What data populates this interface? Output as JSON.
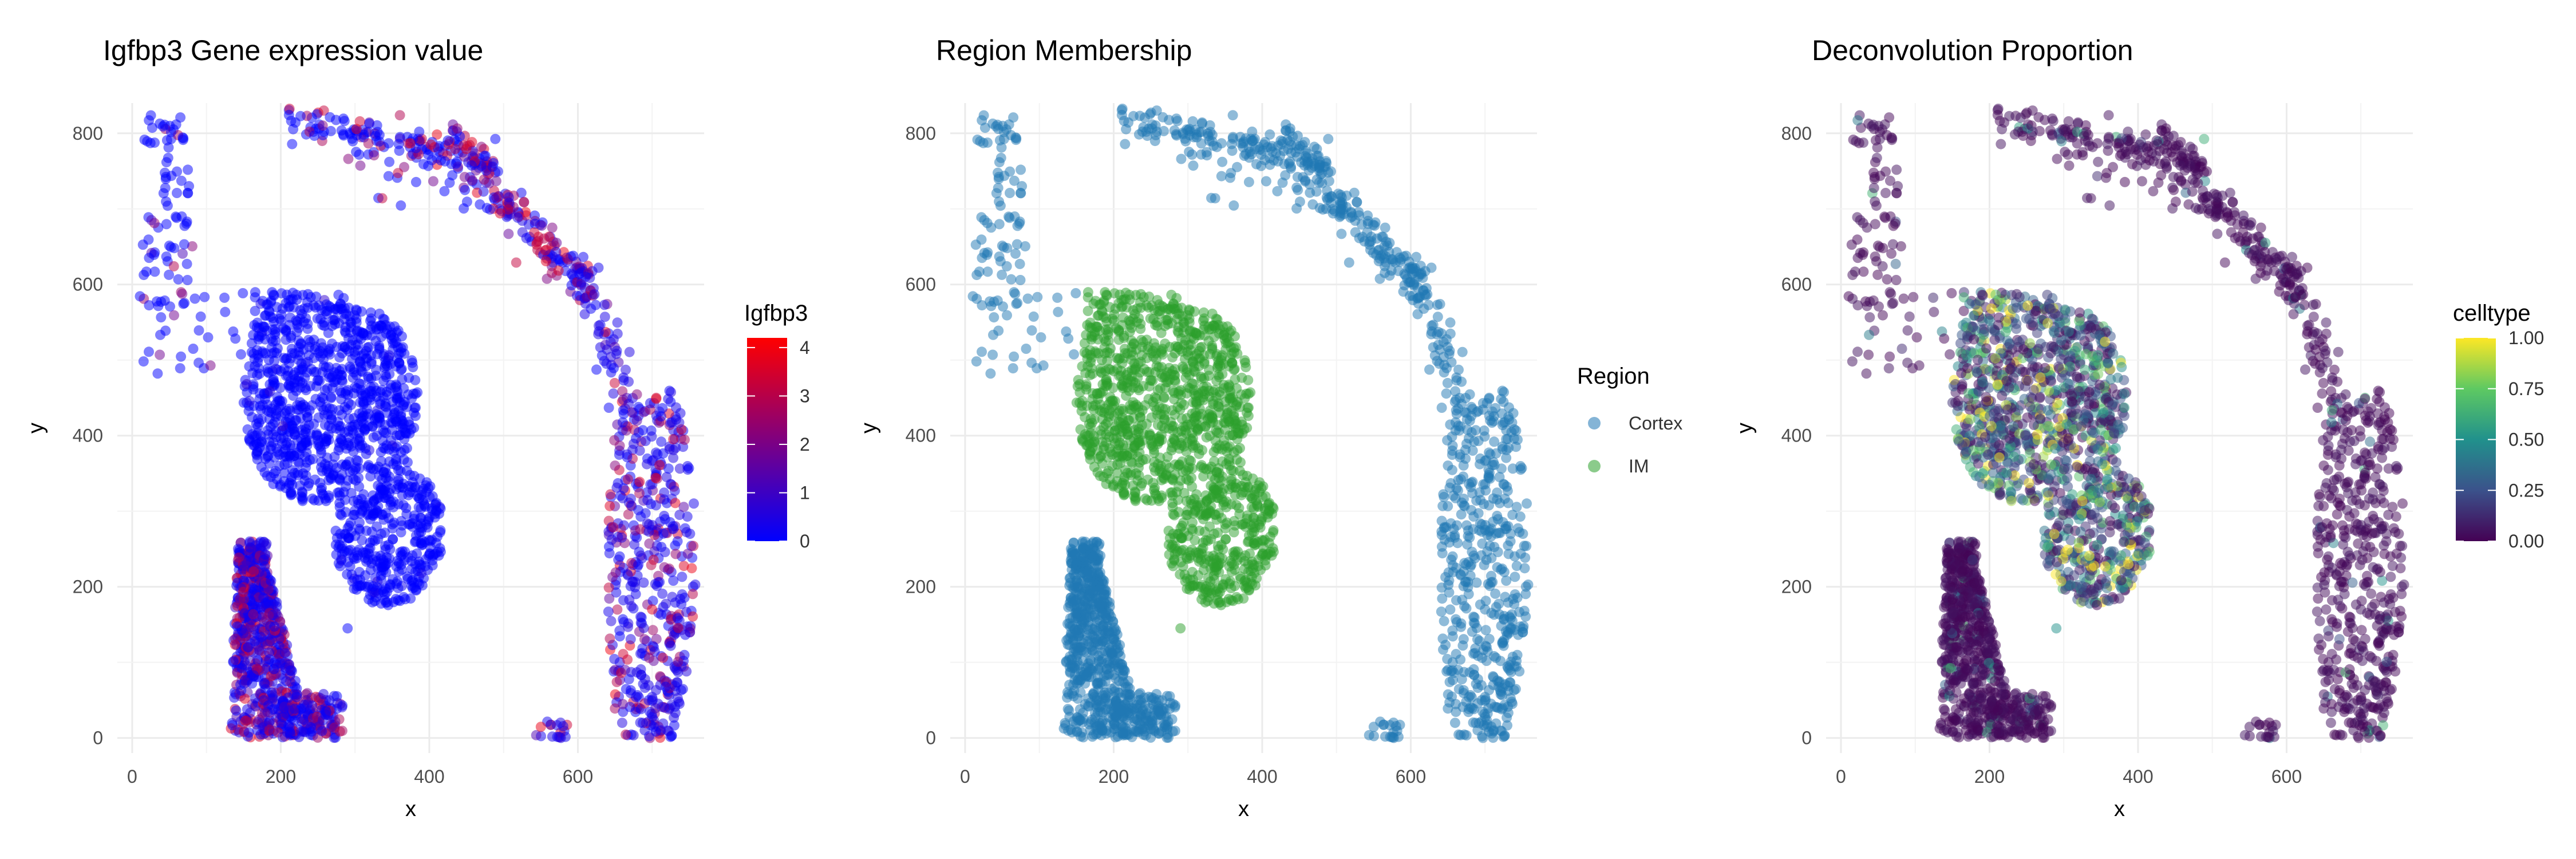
{
  "chart_data": [
    {
      "type": "scatter",
      "title": "Igfbp3 Gene expression value",
      "xlabel": "x",
      "ylabel": "y",
      "xlim": [
        -20,
        770
      ],
      "ylim": [
        -20,
        840
      ],
      "x_ticks": [
        "0",
        "200",
        "400",
        "600"
      ],
      "y_ticks": [
        "0",
        "200",
        "400",
        "600",
        "800"
      ],
      "grid": true,
      "legend": {
        "kind": "colorbar",
        "title": "Igfbp3",
        "placement": "right",
        "range": [
          0,
          4.2
        ],
        "ticks": [
          "0",
          "1",
          "2",
          "3",
          "4"
        ],
        "colors": [
          "#0000FF",
          "#FF0000"
        ]
      },
      "series": [
        {
          "values": "scatter points colored by expression (0 to ~4): blue clusters at upper-left arc, central IM block, lower-left lobe, right arc; magenta/red points concentrated along top-right arc, right arc and lower-left lobe"
        }
      ]
    },
    {
      "type": "scatter",
      "title": "Region Membership",
      "xlabel": "x",
      "ylabel": "y",
      "xlim": [
        -20,
        770
      ],
      "ylim": [
        -20,
        840
      ],
      "x_ticks": [
        "0",
        "200",
        "400",
        "600"
      ],
      "y_ticks": [
        "0",
        "200",
        "400",
        "600",
        "800"
      ],
      "grid": true,
      "legend": {
        "kind": "categorical",
        "title": "Region",
        "placement": "right",
        "entries": [
          {
            "label": "Cortex",
            "color": "#1F77B4"
          },
          {
            "label": "IM",
            "color": "#2CA02C"
          }
        ]
      },
      "series": [
        {
          "values": "Cortex points: outer arc (top, left, right) and lower-left lobe"
        },
        {
          "values": "IM points: central block x~150-420, y~180-590, plus one isolated point near (290,145)"
        }
      ]
    },
    {
      "type": "scatter",
      "title": "Deconvolution Proportion",
      "xlabel": "x",
      "ylabel": "y",
      "xlim": [
        -20,
        770
      ],
      "ylim": [
        -20,
        840
      ],
      "x_ticks": [
        "0",
        "200",
        "400",
        "600"
      ],
      "y_ticks": [
        "0",
        "200",
        "400",
        "600",
        "800"
      ],
      "grid": true,
      "legend": {
        "kind": "colorbar",
        "title": "celltype",
        "placement": "right",
        "range": [
          0,
          1
        ],
        "ticks": [
          "0.00",
          "0.25",
          "0.50",
          "0.75",
          "1.00"
        ],
        "colors": [
          "#440154",
          "#3B528B",
          "#21918C",
          "#5EC962",
          "#FDE725"
        ]
      },
      "series": [
        {
          "values": "scatter points colored by proportion (0 to 1): mostly dark purple near 0 in cortex; mixed teal/green/yellow values in central IM block"
        }
      ]
    }
  ]
}
